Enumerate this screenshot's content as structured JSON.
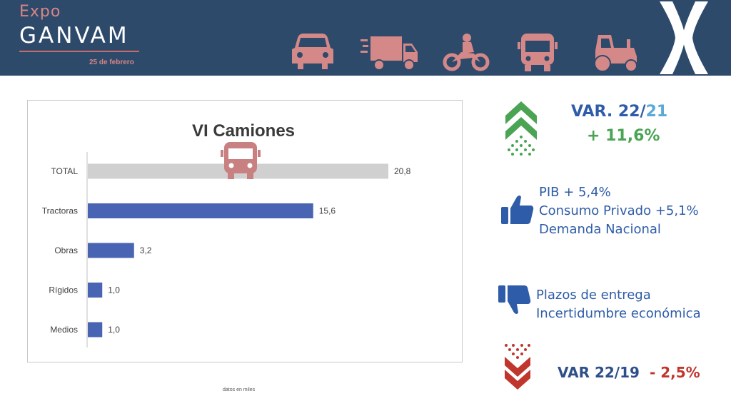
{
  "header": {
    "brand_prefix": "Expo",
    "brand_name": "GANVAM",
    "date": "25 de febrero",
    "vehicle_icons": [
      "car-icon",
      "truck-icon",
      "motorcycle-icon",
      "bus-icon",
      "tractor-icon"
    ],
    "colors": {
      "background": "#2d4a6b",
      "accent": "#d88585"
    }
  },
  "chart_data": {
    "type": "bar",
    "orientation": "horizontal",
    "title": "VI Camiones",
    "categories": [
      "TOTAL",
      "Tractoras",
      "Obras",
      "Rígidos",
      "Medios"
    ],
    "values": [
      20.8,
      15.6,
      3.2,
      1.0,
      1.0
    ],
    "data_labels": [
      "20,8",
      "15,6",
      "3,2",
      "1,0",
      "1,0"
    ],
    "bar_colors": [
      "#d0d0d0",
      "#4a64b4",
      "#4a64b4",
      "#4a64b4",
      "#4a64b4"
    ],
    "xlim": [
      0,
      20.8
    ],
    "grid": false,
    "xlabel": "",
    "ylabel": ""
  },
  "footnote": "datos en miles",
  "right": {
    "var_label_a": "VAR. 22/",
    "var_label_b": "21",
    "var_value": "+ 11,6%",
    "positives": [
      "PIB + 5,4%",
      "Consumo Privado +5,1%",
      "Demanda Nacional"
    ],
    "negatives": [
      "Plazos de entrega",
      "Incertidumbre económica"
    ],
    "var2_label": "VAR 22/19",
    "var2_value": "- 2,5%",
    "colors": {
      "positive": "#4aa454",
      "negative": "#c0362c",
      "text": "#2e5ca8"
    }
  }
}
